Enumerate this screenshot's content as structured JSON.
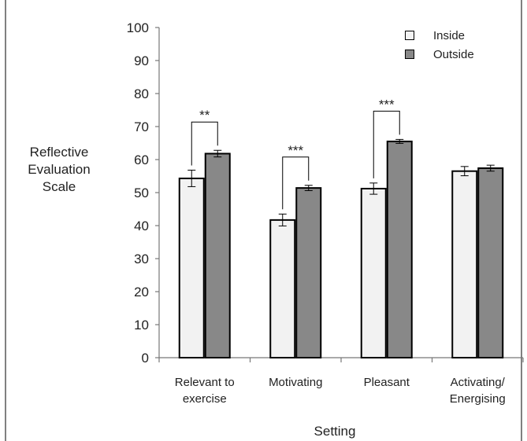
{
  "chart_data": {
    "type": "bar",
    "ylabel": [
      "Reflective",
      "Evaluation",
      "Scale"
    ],
    "xlabel": "Setting",
    "ylim": [
      0,
      100
    ],
    "yticks": [
      "0",
      "10",
      "20",
      "30",
      "40",
      "50",
      "60",
      "70",
      "80",
      "90",
      "100"
    ],
    "categories": [
      [
        "Relevant to",
        "exercise"
      ],
      [
        "Motivating"
      ],
      [
        "Pleasant"
      ],
      [
        "Activating/",
        "Energising"
      ]
    ],
    "series": [
      {
        "name": "Inside",
        "color": "#f2f2f2",
        "values": [
          54.3,
          41.7,
          51.2,
          56.5
        ],
        "errors": [
          2.5,
          1.8,
          1.7,
          1.4
        ]
      },
      {
        "name": "Outside",
        "color": "#888888",
        "values": [
          61.8,
          51.4,
          65.5,
          57.4
        ],
        "errors": [
          1.0,
          0.8,
          0.6,
          0.9
        ]
      }
    ],
    "significance": [
      "**",
      "***",
      "***",
      ""
    ],
    "grid": false,
    "legend_position": "top-right"
  }
}
